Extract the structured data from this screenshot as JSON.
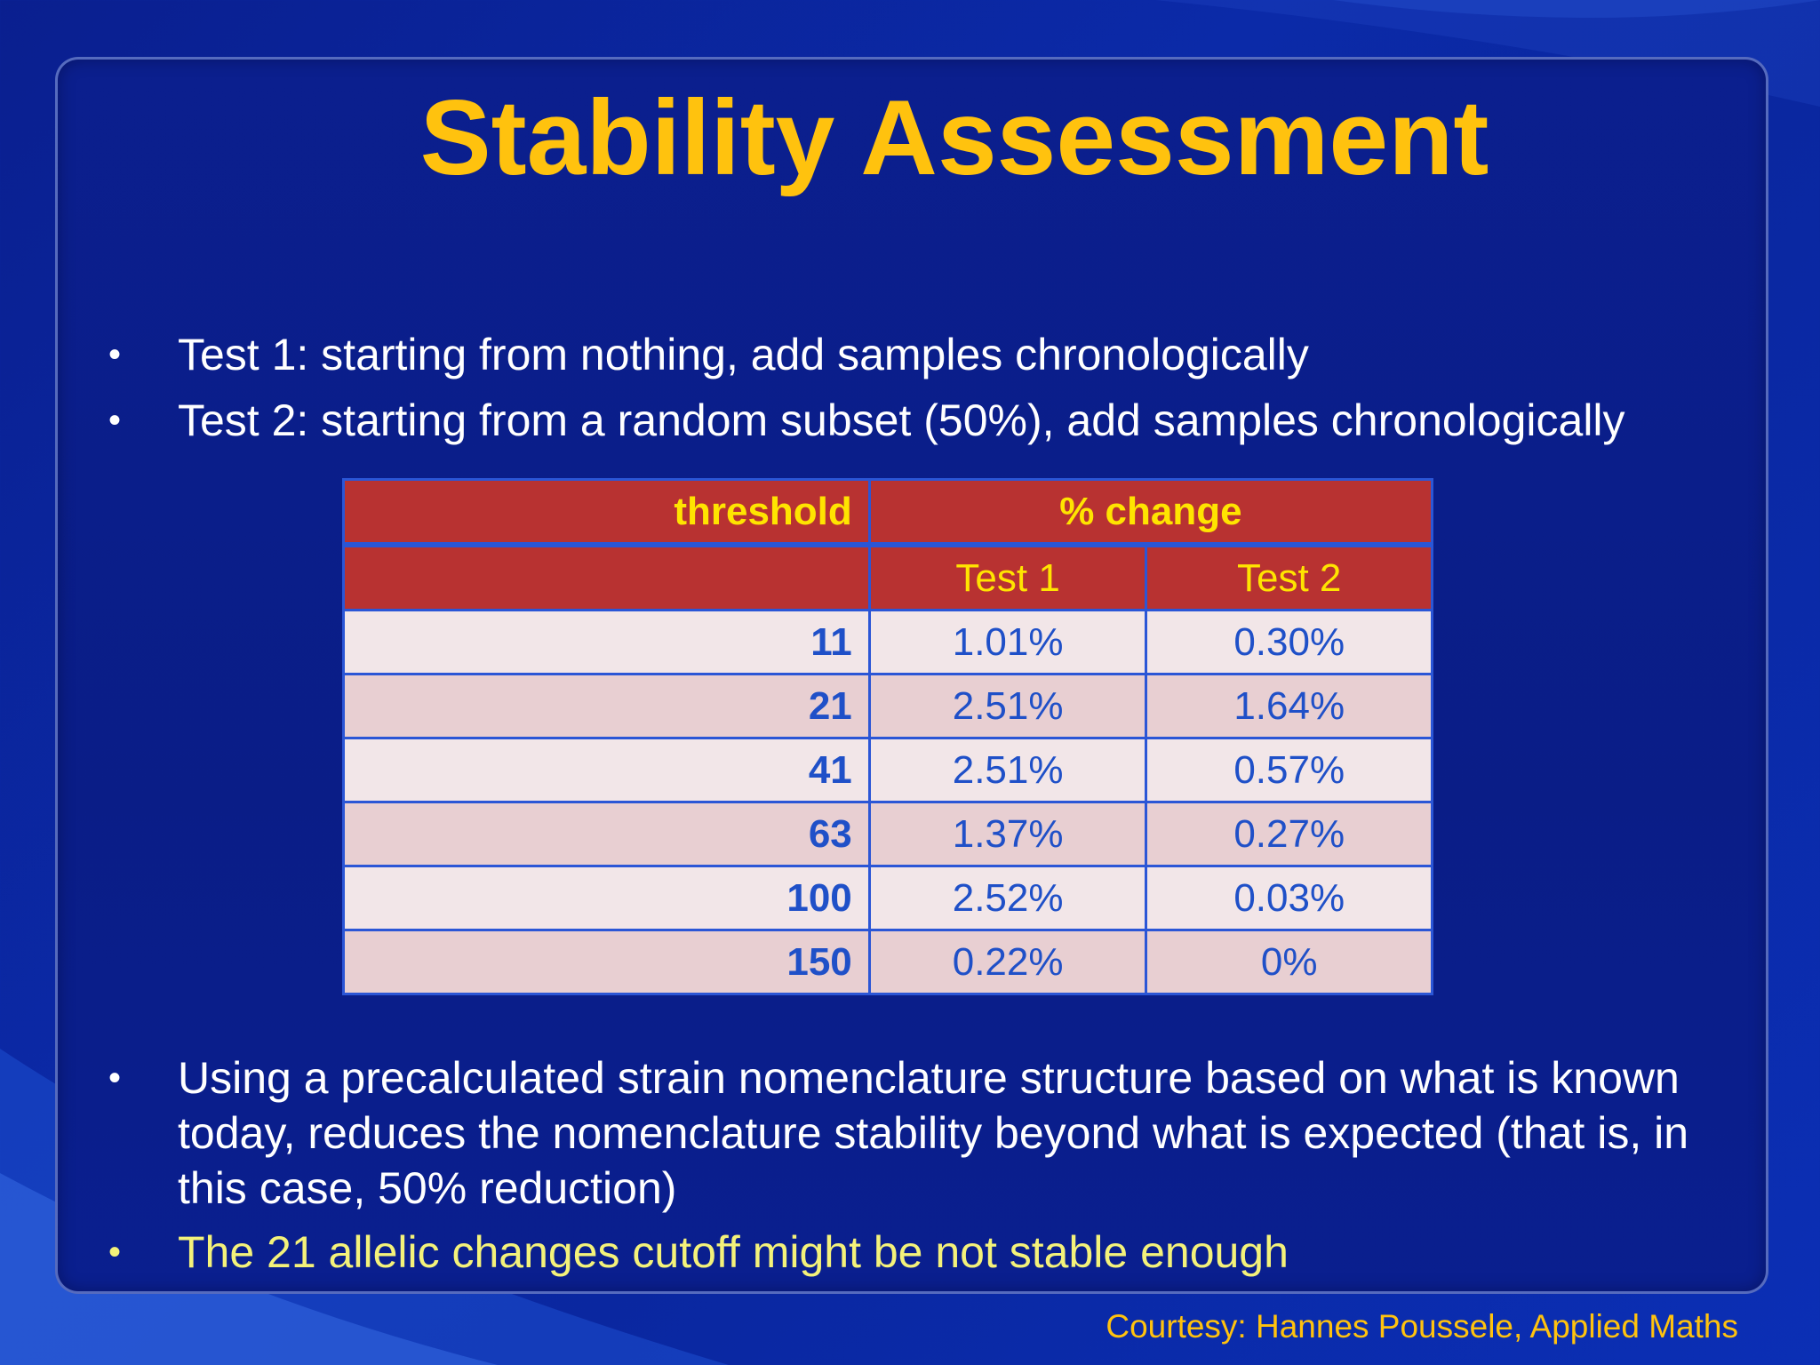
{
  "slide": {
    "title": "Stability Assessment",
    "bullets_top": [
      "Test 1: starting from nothing, add samples chronologically",
      "Test 2: starting from a random subset (50%), add samples chronologically"
    ],
    "bullets_bottom": [
      "Using a precalculated strain nomenclature structure based on what is known today, reduces the nomenclature stability beyond what is expected (that is, in this case, 50% reduction)",
      "The 21 allelic changes cutoff might be not stable enough"
    ],
    "bullet_glyph": "•",
    "courtesy": "Courtesy: Hannes Poussele, Applied Maths"
  },
  "table": {
    "header_threshold": "threshold",
    "header_change": "% change",
    "header_test1": "Test 1",
    "header_test2": "Test 2",
    "rows": [
      {
        "threshold": "11",
        "test1": "1.01%",
        "test2": "0.30%"
      },
      {
        "threshold": "21",
        "test1": "2.51%",
        "test2": "1.64%"
      },
      {
        "threshold": "41",
        "test1": "2.51%",
        "test2": "0.57%"
      },
      {
        "threshold": "63",
        "test1": "1.37%",
        "test2": "0.27%"
      },
      {
        "threshold": "100",
        "test1": "2.52%",
        "test2": "0.03%"
      },
      {
        "threshold": "150",
        "test1": "0.22%",
        "test2": "0%"
      }
    ]
  },
  "colors": {
    "title": "#ffc20e",
    "header_bg": "#b83231",
    "header_text": "#ffe400",
    "cell_text": "#1f50c8",
    "highlight_bullet": "#f4f27a"
  }
}
